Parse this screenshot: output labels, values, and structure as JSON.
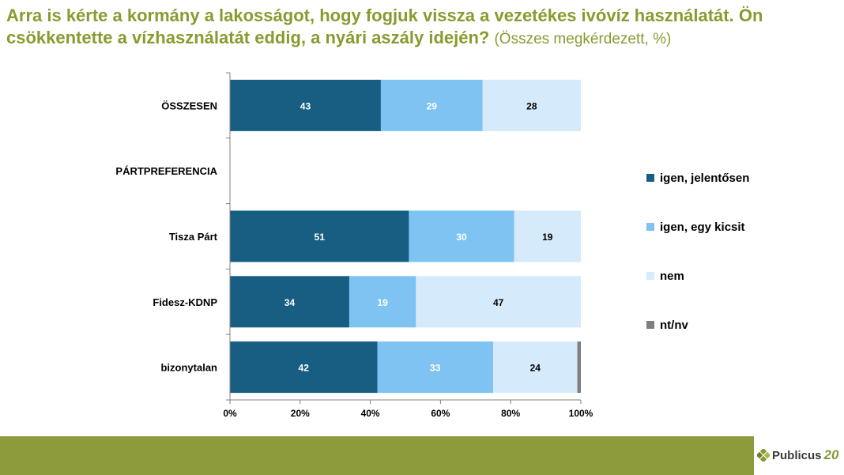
{
  "title": {
    "main": "Arra is kérte a kormány a lakosságot, hogy fogjuk vissza a vezetékes ivóvíz használatát. Ön csökkentette a vízhasználatát eddig, a nyári aszály idején?",
    "sub": "(Összes megkérdezett, %)"
  },
  "brand": {
    "name": "Publicus",
    "suffix": "20"
  },
  "chart_data": {
    "type": "bar",
    "orientation": "horizontal",
    "stacked": true,
    "categories": [
      "ÖSSZESEN",
      "PÁRTPREFERENCIA",
      "Tisza Párt",
      "Fidesz-KDNP",
      "bizonytalan"
    ],
    "series": [
      {
        "name": "igen, jelentősen",
        "color": "#175e82",
        "values": [
          43,
          null,
          51,
          34,
          42
        ]
      },
      {
        "name": "igen, egy kicsit",
        "color": "#7ec3f1",
        "values": [
          29,
          null,
          30,
          19,
          33
        ]
      },
      {
        "name": "nem",
        "color": "#d5eafa",
        "values": [
          28,
          null,
          19,
          47,
          24
        ]
      },
      {
        "name": "nt/nv",
        "color": "#7f7f7f",
        "values": [
          0,
          null,
          0,
          0,
          1
        ]
      }
    ],
    "data_labels": [
      [
        "43",
        "29",
        "28",
        ""
      ],
      [
        "",
        "",
        "",
        ""
      ],
      [
        "51",
        "30",
        "19",
        ""
      ],
      [
        "34",
        "19",
        "47",
        ""
      ],
      [
        "42",
        "33",
        "24",
        ""
      ]
    ],
    "xlim": [
      0,
      100
    ],
    "xticks": [
      "0%",
      "20%",
      "40%",
      "60%",
      "80%",
      "100%"
    ],
    "legend_position": "right",
    "grid": false
  }
}
